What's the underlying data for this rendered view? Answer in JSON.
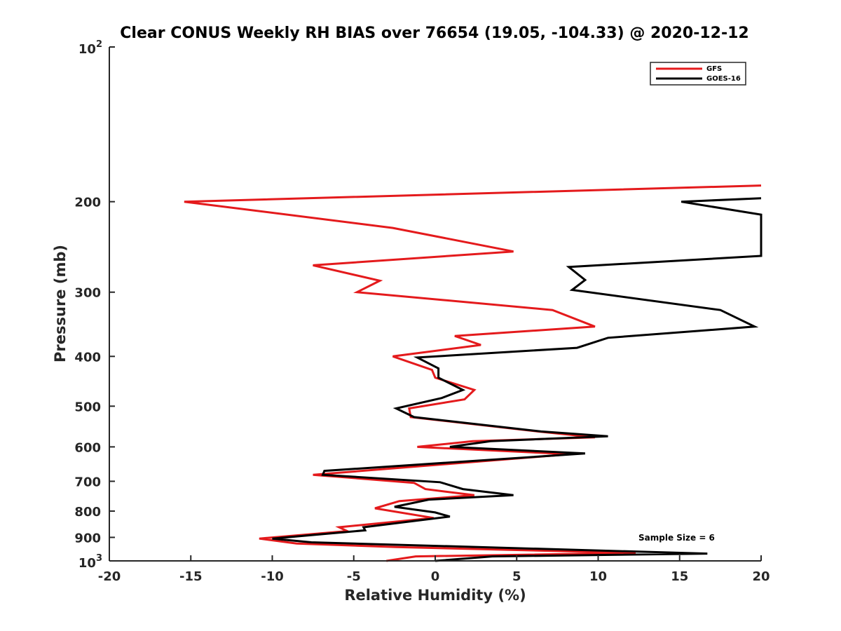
{
  "chart_data": {
    "type": "line",
    "title": "Clear CONUS Weekly RH BIAS over 76654 (19.05, -104.33) @ 2020-12-12",
    "xlabel": "Relative Humidity (%)",
    "ylabel": "Pressure (mb)",
    "xlim": [
      -20,
      20
    ],
    "ylim": [
      100,
      1000
    ],
    "yscale": "log",
    "y_reversed": true,
    "x_ticks": [
      -20,
      -15,
      -10,
      -5,
      0,
      5,
      10,
      15,
      20
    ],
    "x_tick_labels": [
      "-20",
      "-15",
      "-10",
      "-5",
      "0",
      "5",
      "10",
      "15",
      "20"
    ],
    "y_ticks": [
      200,
      300,
      400,
      500,
      600,
      700,
      800,
      900
    ],
    "y_tick_labels": [
      "200",
      "300",
      "400",
      "500",
      "600",
      "700",
      "800",
      "900"
    ],
    "y_end_labels": [
      {
        "value": 100,
        "base": "10",
        "exp": "2"
      },
      {
        "value": 1000,
        "base": "10",
        "exp": "3"
      }
    ],
    "legend_position": "top-right",
    "annotation": "Sample Size = 6",
    "series": [
      {
        "name": "GFS",
        "color": "#e41a1c",
        "points": [
          {
            "x": 20,
            "y": 186
          },
          {
            "x": -15.4,
            "y": 200
          },
          {
            "x": -2.6,
            "y": 225
          },
          {
            "x": 4.8,
            "y": 250
          },
          {
            "x": -7.5,
            "y": 266
          },
          {
            "x": -3.4,
            "y": 285
          },
          {
            "x": -4.8,
            "y": 300
          },
          {
            "x": 7.2,
            "y": 325
          },
          {
            "x": 9.8,
            "y": 350
          },
          {
            "x": 1.2,
            "y": 365
          },
          {
            "x": 2.8,
            "y": 380
          },
          {
            "x": -2.6,
            "y": 400
          },
          {
            "x": -0.2,
            "y": 425
          },
          {
            "x": 0,
            "y": 440
          },
          {
            "x": 2.4,
            "y": 465
          },
          {
            "x": 1.8,
            "y": 485
          },
          {
            "x": -1.6,
            "y": 505
          },
          {
            "x": -1.5,
            "y": 525
          },
          {
            "x": 6.3,
            "y": 560
          },
          {
            "x": 9.8,
            "y": 575
          },
          {
            "x": 2.3,
            "y": 585
          },
          {
            "x": -1.1,
            "y": 600
          },
          {
            "x": 8.3,
            "y": 620
          },
          {
            "x": -7.5,
            "y": 680
          },
          {
            "x": -1.3,
            "y": 705
          },
          {
            "x": -0.6,
            "y": 725
          },
          {
            "x": 2.4,
            "y": 745
          },
          {
            "x": -2.2,
            "y": 765
          },
          {
            "x": -3.7,
            "y": 790
          },
          {
            "x": -0.1,
            "y": 825
          },
          {
            "x": -5.9,
            "y": 860
          },
          {
            "x": -5.4,
            "y": 875
          },
          {
            "x": -10.8,
            "y": 905
          },
          {
            "x": -8.5,
            "y": 925
          },
          {
            "x": -2.4,
            "y": 940
          },
          {
            "x": 12.3,
            "y": 965
          },
          {
            "x": -1.2,
            "y": 980
          },
          {
            "x": -3,
            "y": 1000
          }
        ]
      },
      {
        "name": "GOES-16",
        "color": "#000000",
        "points": [
          {
            "x": 20,
            "y": 197
          },
          {
            "x": 15.1,
            "y": 200
          },
          {
            "x": 20,
            "y": 212
          },
          {
            "x": 20,
            "y": 255
          },
          {
            "x": 8.2,
            "y": 268
          },
          {
            "x": 9.2,
            "y": 284
          },
          {
            "x": 8.4,
            "y": 297
          },
          {
            "x": 17.5,
            "y": 325
          },
          {
            "x": 19.6,
            "y": 350
          },
          {
            "x": 10.6,
            "y": 368
          },
          {
            "x": 8.7,
            "y": 385
          },
          {
            "x": -1.1,
            "y": 402
          },
          {
            "x": 0.2,
            "y": 422
          },
          {
            "x": 0.2,
            "y": 440
          },
          {
            "x": 1.7,
            "y": 465
          },
          {
            "x": 0.4,
            "y": 482
          },
          {
            "x": -2.4,
            "y": 505
          },
          {
            "x": -1.3,
            "y": 525
          },
          {
            "x": 6.5,
            "y": 560
          },
          {
            "x": 10.6,
            "y": 572
          },
          {
            "x": 3.4,
            "y": 585
          },
          {
            "x": 0.9,
            "y": 600
          },
          {
            "x": 9.2,
            "y": 618
          },
          {
            "x": -6.8,
            "y": 668
          },
          {
            "x": -6.9,
            "y": 680
          },
          {
            "x": 0.3,
            "y": 703
          },
          {
            "x": 1.7,
            "y": 725
          },
          {
            "x": 4.8,
            "y": 745
          },
          {
            "x": -0.4,
            "y": 760
          },
          {
            "x": -2.5,
            "y": 785
          },
          {
            "x": 0,
            "y": 805
          },
          {
            "x": 0.9,
            "y": 820
          },
          {
            "x": -4.4,
            "y": 860
          },
          {
            "x": -4.3,
            "y": 872
          },
          {
            "x": -10,
            "y": 905
          },
          {
            "x": -7.6,
            "y": 920
          },
          {
            "x": 16.7,
            "y": 968
          },
          {
            "x": 3.5,
            "y": 980
          },
          {
            "x": 0,
            "y": 1000
          }
        ]
      }
    ]
  }
}
